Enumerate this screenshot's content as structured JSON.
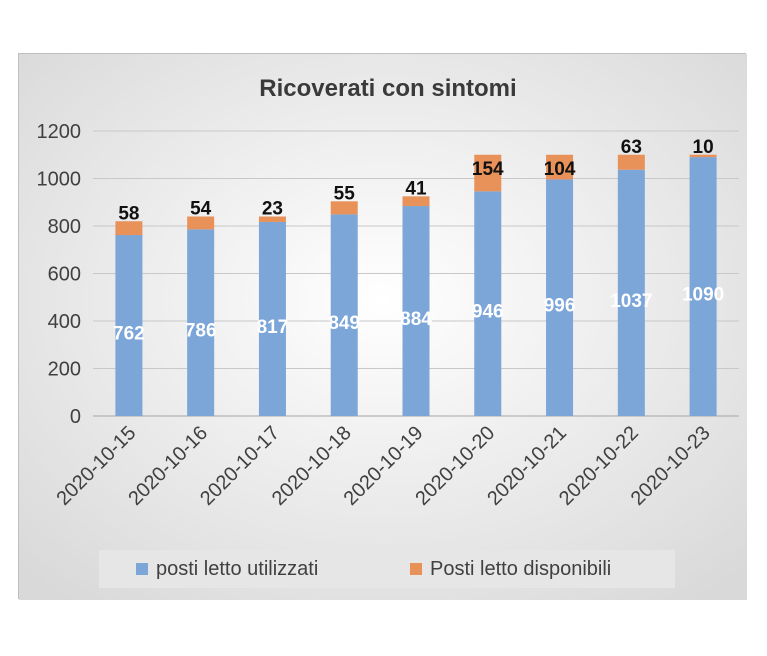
{
  "chart_data": {
    "type": "bar",
    "stacked": true,
    "title": "Ricoverati con sintomi",
    "categories": [
      "2020-10-15",
      "2020-10-16",
      "2020-10-17",
      "2020-10-18",
      "2020-10-19",
      "2020-10-20",
      "2020-10-21",
      "2020-10-22",
      "2020-10-23"
    ],
    "series": [
      {
        "name": "posti letto utilizzati",
        "color": "#7ca5d8",
        "label_color": "#ffffff",
        "values": [
          762,
          786,
          817,
          849,
          884,
          946,
          996,
          1037,
          1090
        ]
      },
      {
        "name": "Posti letto disponibili",
        "color": "#e8925a",
        "label_color": "#111111",
        "values": [
          58,
          54,
          23,
          55,
          41,
          154,
          104,
          63,
          10
        ]
      }
    ],
    "ylim": [
      0,
      1200
    ],
    "yticks": [
      0,
      200,
      400,
      600,
      800,
      1000,
      1200
    ],
    "grid": true,
    "legend": "bottom"
  }
}
